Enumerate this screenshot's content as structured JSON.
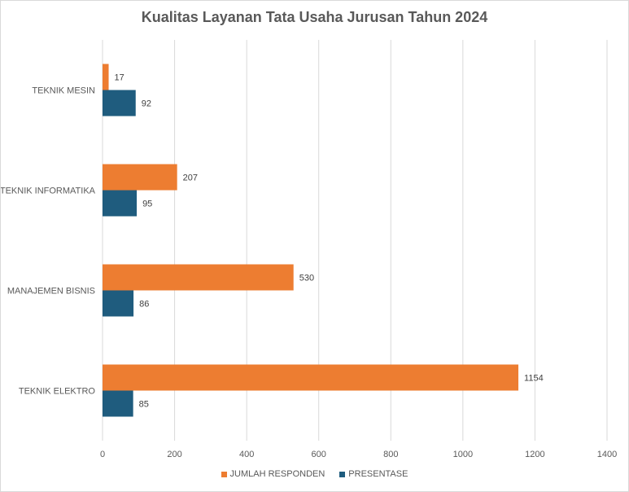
{
  "chart_data": {
    "type": "bar",
    "orientation": "horizontal",
    "title": "Kualitas Layanan Tata Usaha Jurusan Tahun 2024",
    "categories": [
      "TEKNIK MESIN",
      "TEKNIK INFORMATIKA",
      "MANAJEMEN BISNIS",
      "TEKNIK ELEKTRO"
    ],
    "series": [
      {
        "name": "JUMLAH RESPONDEN",
        "color": "#ED7D31",
        "values": [
          17,
          207,
          530,
          1154
        ]
      },
      {
        "name": "PRESENTASE",
        "color": "#1F5C7E",
        "values": [
          92,
          95,
          86,
          85
        ]
      }
    ],
    "xlim": [
      0,
      1400
    ],
    "xticks": [
      0,
      200,
      400,
      600,
      800,
      1000,
      1200,
      1400
    ],
    "grid": true,
    "legend_position": "bottom"
  }
}
